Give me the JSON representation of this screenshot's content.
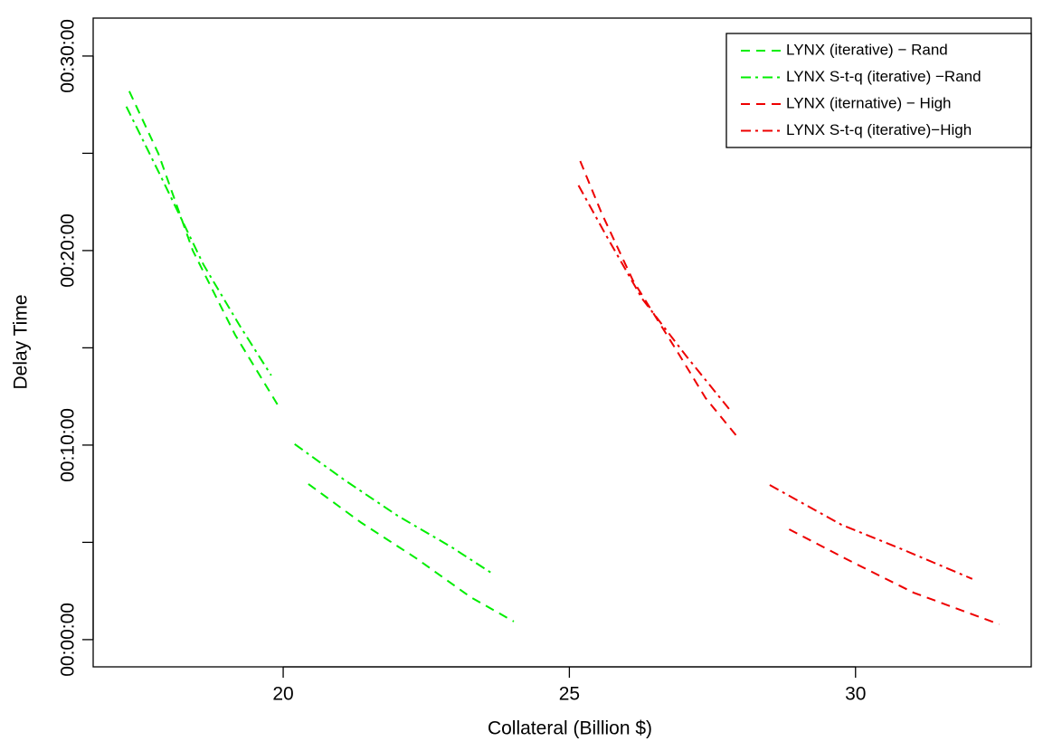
{
  "chart_data": {
    "type": "line",
    "xlabel": "Collateral (Billion $)",
    "ylabel": "Delay Time",
    "xlim": [
      16.68,
      33.07
    ],
    "xticks": [
      20,
      25,
      30
    ],
    "ylim": [
      -1.4,
      31.95
    ],
    "yticks": [
      {
        "value": 0,
        "label": "00:00:00"
      },
      {
        "value": 10,
        "label": "00:10:00"
      },
      {
        "value": 20,
        "label": "00:20:00"
      },
      {
        "value": 30,
        "label": "00:30:00"
      }
    ],
    "yminorticks": [
      5,
      15,
      25
    ],
    "legend": "top-right",
    "series": [
      {
        "name": "LYNX (iterative) − Rand",
        "color": "#00ee00",
        "dash": "dashed",
        "x": [
          17.31,
          17.82,
          18.42,
          19.16,
          19.9,
          null,
          20.44,
          21.37,
          22.32,
          23.27,
          24.03
        ],
        "values": [
          28.19,
          24.98,
          20.0,
          15.67,
          12.09,
          null,
          8.0,
          6.0,
          4.19,
          2.19,
          0.93
        ]
      },
      {
        "name": "LYNX S-t-q (iterative) −Rand",
        "color": "#00ee00",
        "dash": "dashdot",
        "x": [
          17.26,
          17.9,
          18.61,
          19.24,
          19.79,
          null,
          20.2,
          21.06,
          22.0,
          22.95,
          23.63
        ],
        "values": [
          27.4,
          23.58,
          19.26,
          16.14,
          13.58,
          null,
          10.05,
          8.23,
          6.37,
          4.74,
          3.44
        ]
      },
      {
        "name": "LYNX (iternative) − High",
        "color": "#ee0000",
        "dash": "dashed",
        "x": [
          25.19,
          25.56,
          26.11,
          26.9,
          27.38,
          27.91,
          null,
          28.84,
          29.9,
          31.01,
          32.51
        ],
        "values": [
          24.6,
          21.95,
          18.47,
          14.74,
          12.42,
          10.51,
          null,
          5.67,
          4.05,
          2.42,
          0.79
        ]
      },
      {
        "name": "LYNX S-t-q (iterative)−High",
        "color": "#ee0000",
        "dash": "dashdot",
        "x": [
          25.16,
          25.64,
          26.27,
          27.06,
          27.79,
          null,
          28.5,
          29.75,
          30.85,
          32.04
        ],
        "values": [
          23.35,
          20.79,
          17.53,
          14.51,
          11.86,
          null,
          7.95,
          5.91,
          4.6,
          3.12
        ]
      }
    ]
  }
}
